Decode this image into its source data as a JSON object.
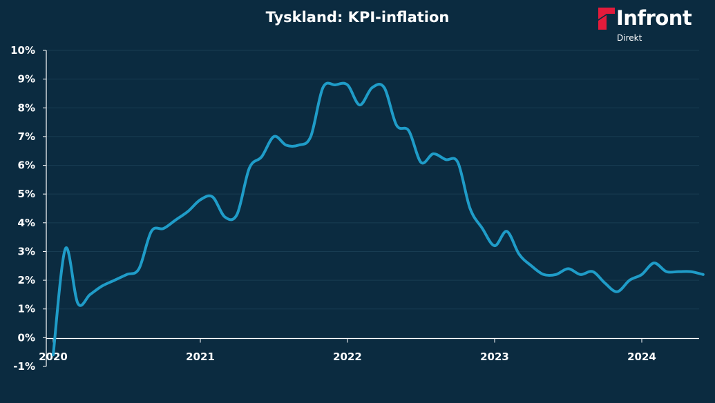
{
  "header": {
    "title": "Tyskland: KPI-inflation"
  },
  "logo": {
    "name": "Infront",
    "sub": "Direkt",
    "mark_color": "#e31b3b"
  },
  "colors": {
    "background": "#0b2b40",
    "line": "#1f9cc8",
    "grid": "#183c52",
    "axis": "#ffffff"
  },
  "chart_data": {
    "type": "line",
    "title": "Tyskland: KPI-inflation",
    "xlabel": "",
    "ylabel": "",
    "ylim": [
      -1,
      10
    ],
    "xlim": [
      2020.0,
      2024.5
    ],
    "y_ticks": [
      -1,
      0,
      1,
      2,
      3,
      4,
      5,
      6,
      7,
      8,
      9,
      10
    ],
    "y_tick_labels": [
      "-1%",
      "0%",
      "1%",
      "2%",
      "3%",
      "4%",
      "5%",
      "6%",
      "7%",
      "8%",
      "9%",
      "10%"
    ],
    "x_ticks": [
      2020,
      2021,
      2022,
      2023,
      2024
    ],
    "x_tick_labels": [
      "2020",
      "2021",
      "2022",
      "2023",
      "2024"
    ],
    "grid": true,
    "legend": "none",
    "series": [
      {
        "color": "#1f9cc8",
        "x": [
          2020.0,
          2020.083,
          2020.167,
          2020.25,
          2020.333,
          2020.417,
          2020.5,
          2020.583,
          2020.667,
          2020.75,
          2020.833,
          2020.917,
          2021.0,
          2021.083,
          2021.167,
          2021.25,
          2021.333,
          2021.417,
          2021.5,
          2021.583,
          2021.667,
          2021.75,
          2021.833,
          2021.917,
          2022.0,
          2022.083,
          2022.167,
          2022.25,
          2022.333,
          2022.417,
          2022.5,
          2022.583,
          2022.667,
          2022.75,
          2022.833,
          2022.917,
          2023.0,
          2023.083,
          2023.167,
          2023.25,
          2023.333,
          2023.417,
          2023.5,
          2023.583,
          2023.667,
          2023.75,
          2023.833,
          2023.917,
          2024.0,
          2024.083,
          2024.167,
          2024.25,
          2024.333,
          2024.417
        ],
        "values": [
          -0.6,
          3.1,
          1.2,
          1.5,
          1.8,
          2.0,
          2.2,
          2.4,
          3.7,
          3.8,
          4.1,
          4.4,
          4.8,
          4.9,
          4.2,
          4.3,
          5.9,
          6.3,
          7.0,
          6.7,
          6.7,
          7.0,
          8.7,
          8.8,
          8.8,
          8.1,
          8.7,
          8.7,
          7.4,
          7.2,
          6.1,
          6.4,
          6.2,
          6.1,
          4.5,
          3.8,
          3.2,
          3.7,
          2.9,
          2.5,
          2.2,
          2.2,
          2.4,
          2.2,
          2.3,
          1.9,
          1.6,
          2.0,
          2.2,
          2.6,
          2.3,
          2.3,
          2.3,
          2.2
        ]
      }
    ]
  }
}
